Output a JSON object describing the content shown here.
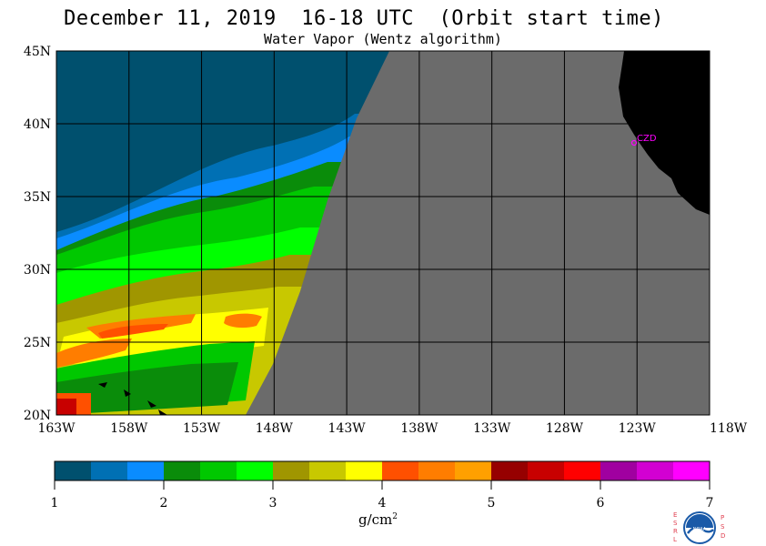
{
  "header": {
    "title": "December 11, 2019  16-18 UTC  (Orbit start time)",
    "subtitle": "Water Vapor (Wentz algorithm)"
  },
  "map": {
    "lat_labels": [
      "45N",
      "40N",
      "35N",
      "30N",
      "25N",
      "20N"
    ],
    "lon_labels": [
      "163W",
      "158W",
      "153W",
      "148W",
      "143W",
      "138W",
      "133W",
      "128W",
      "123W",
      "118W"
    ],
    "lat_range": [
      20,
      45
    ],
    "lon_range": [
      -163,
      -118
    ],
    "station_label": "CZD",
    "colors": {
      "no_data": "#6b6b6b",
      "land": "#000000",
      "grid": "#000000",
      "station": "#ff00ff"
    }
  },
  "colorbar": {
    "tick_labels": [
      "1",
      "2",
      "3",
      "4",
      "5",
      "6",
      "7"
    ],
    "colors": [
      "#00506e",
      "#0070b4",
      "#0a8cff",
      "#0a8c0a",
      "#00c800",
      "#00ff00",
      "#a09600",
      "#c8c800",
      "#ffff00",
      "#ff5000",
      "#ff7d00",
      "#ffa000",
      "#960000",
      "#c80000",
      "#ff0000",
      "#a000a0",
      "#d200d2",
      "#ff00ff"
    ],
    "units": "g/cm",
    "units_exponent": "2"
  },
  "logo": {
    "name": "NOAA",
    "left_letters": [
      "E",
      "S",
      "R",
      "L"
    ],
    "right_letters": [
      "P",
      "S",
      "D"
    ]
  }
}
